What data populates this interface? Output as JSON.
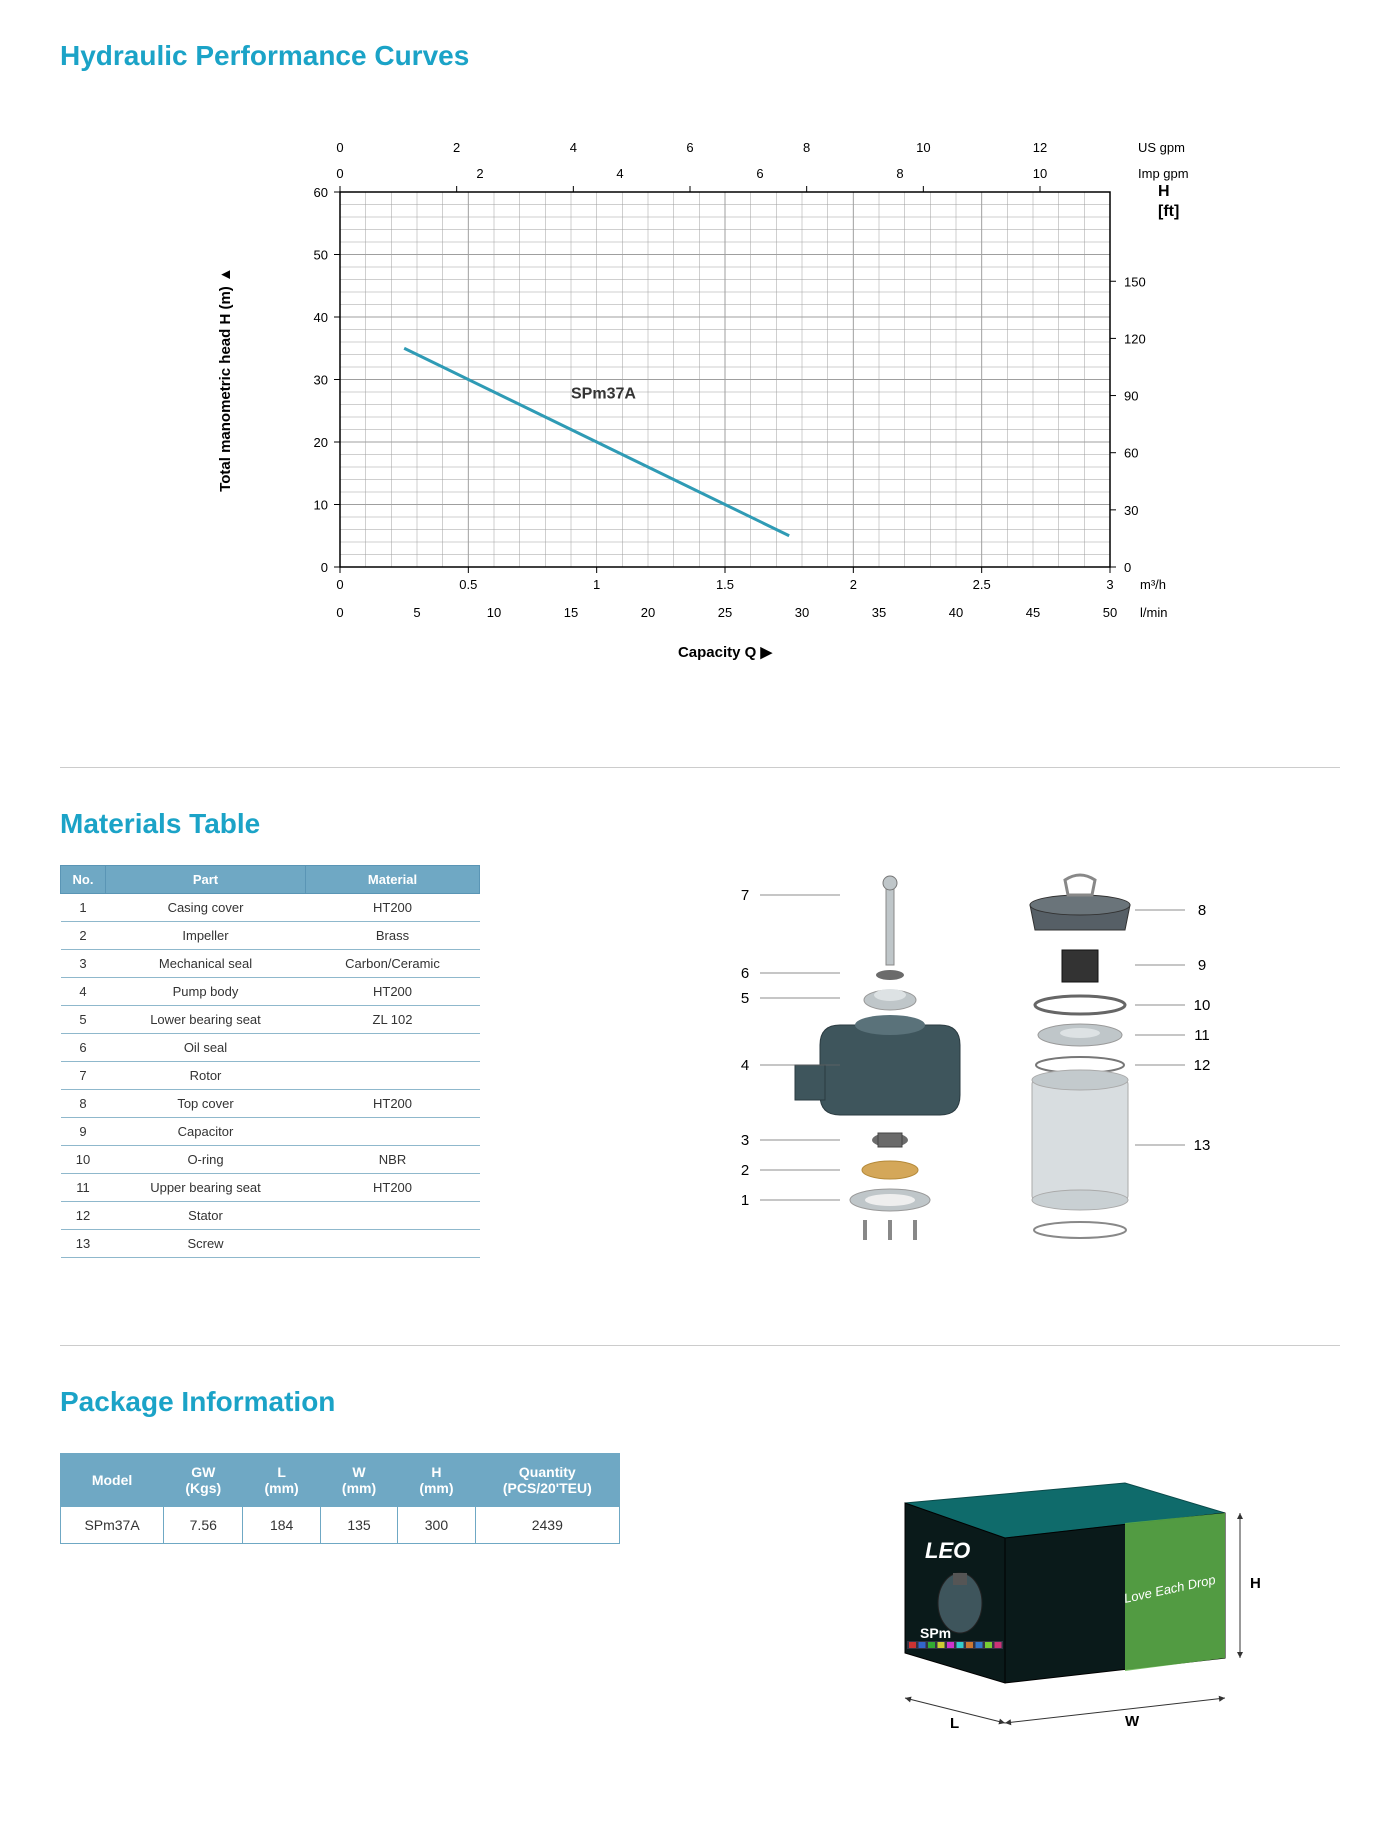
{
  "sections": {
    "chart_title": "Hydraulic Performance Curves",
    "materials_title": "Materials Table",
    "package_title": "Package Information"
  },
  "chart": {
    "type": "line",
    "series_label": "SPm37A",
    "line_color": "#2f9bb5",
    "line_width": 2,
    "grid_color": "#9f9f9f",
    "axis_color": "#000000",
    "background_color": "#ffffff",
    "label_fontsize": 14,
    "tick_fontsize": 13,
    "y_left": {
      "label": "Total manometric head H (m)  ▲",
      "min": 0,
      "max": 60,
      "step": 10
    },
    "y_right_labels": [
      "H",
      "[ft]"
    ],
    "y_right_ticks": [
      0,
      30,
      60,
      90,
      120,
      150
    ],
    "x_bottom_primary": {
      "unit": "m³/h",
      "min": 0,
      "max": 3.0,
      "step": 0.5
    },
    "x_bottom_secondary": {
      "unit": "l/min",
      "ticks": [
        0,
        5,
        10,
        15,
        20,
        25,
        30,
        35,
        40,
        45,
        50
      ]
    },
    "x_bottom_label": "Capacity Q  ▶",
    "x_top_primary": {
      "unit": "US gpm",
      "ticks": [
        0,
        2,
        4,
        6,
        8,
        10,
        12
      ]
    },
    "x_top_secondary": {
      "unit": "Imp gpm",
      "ticks": [
        0,
        2,
        4,
        6,
        8,
        10
      ]
    },
    "data_points": [
      {
        "q_m3h": 0.25,
        "h_m": 35
      },
      {
        "q_m3h": 0.75,
        "h_m": 25
      },
      {
        "q_m3h": 1.0,
        "h_m": 20
      },
      {
        "q_m3h": 1.75,
        "h_m": 5
      }
    ]
  },
  "materials": {
    "headers": [
      "No.",
      "Part",
      "Material"
    ],
    "rows": [
      [
        "1",
        "Casing cover",
        "HT200"
      ],
      [
        "2",
        "Impeller",
        "Brass"
      ],
      [
        "3",
        "Mechanical seal",
        "Carbon/Ceramic"
      ],
      [
        "4",
        "Pump body",
        "HT200"
      ],
      [
        "5",
        "Lower bearing seat",
        "ZL 102"
      ],
      [
        "6",
        "Oil seal",
        ""
      ],
      [
        "7",
        "Rotor",
        ""
      ],
      [
        "8",
        "Top cover",
        "HT200"
      ],
      [
        "9",
        "Capacitor",
        ""
      ],
      [
        "10",
        "O-ring",
        "NBR"
      ],
      [
        "11",
        "Upper bearing seat",
        "HT200"
      ],
      [
        "12",
        "Stator",
        ""
      ],
      [
        "13",
        "Screw",
        ""
      ]
    ]
  },
  "exploded": {
    "callouts_left": [
      "7",
      "6",
      "5",
      "4",
      "3",
      "2",
      "1"
    ],
    "callouts_right": [
      "8",
      "9",
      "10",
      "11",
      "12",
      "13"
    ],
    "part_colors": {
      "body": "#3e555c",
      "metal": "#bfc6c9",
      "cover": "#565f66",
      "brass": "#d4a759",
      "seal": "#6b6b6b"
    }
  },
  "package": {
    "headers": [
      "Model",
      "GW\n(Kgs)",
      "L\n(mm)",
      "W\n(mm)",
      "H\n(mm)",
      "Quantity\n(PCS/20'TEU)"
    ],
    "rows": [
      [
        "SPm37A",
        "7.56",
        "184",
        "135",
        "300",
        "2439"
      ]
    ],
    "box": {
      "brand": "LEO",
      "model": "SPm",
      "slogan": "Love Each Drop",
      "dim_labels": {
        "L": "L",
        "W": "W",
        "H": "H"
      },
      "colors": {
        "box_dark": "#0a1a1a",
        "box_teal": "#0f6b6b",
        "box_green": "#5fb34a",
        "text": "#ffffff"
      }
    }
  }
}
